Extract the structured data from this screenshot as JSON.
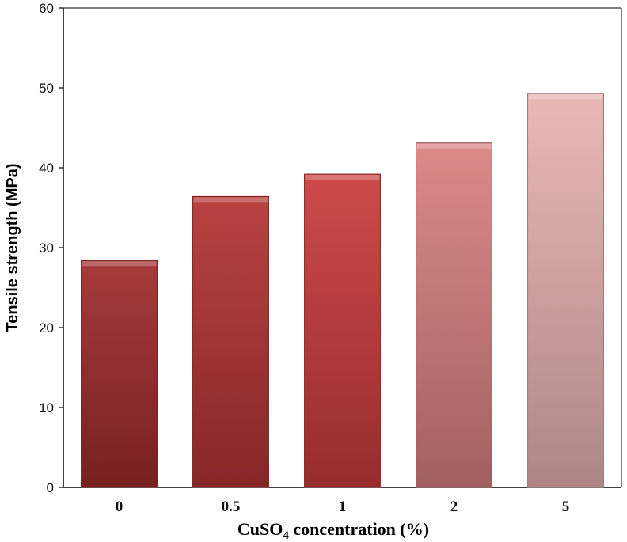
{
  "chart_data": {
    "type": "bar",
    "title": "",
    "xlabel": "CuSO4 concentration (%)",
    "xlabel_main": "CuSO",
    "xlabel_sub": "4",
    "xlabel_rest": " concentration (%)",
    "ylabel": "Tensile strength (MPa)",
    "categories": [
      "0",
      "0.5",
      "1",
      "2",
      "5"
    ],
    "values": [
      28.4,
      36.4,
      39.2,
      43.1,
      49.3
    ],
    "ylim": [
      0,
      60
    ],
    "yticks": [
      "0",
      "10",
      "20",
      "30",
      "40",
      "50",
      "60"
    ],
    "grid": false,
    "legend": "none",
    "colors": [
      "#9e2a2a",
      "#b33232",
      "#c93a3a",
      "#d98080",
      "#e8b2b2"
    ]
  }
}
